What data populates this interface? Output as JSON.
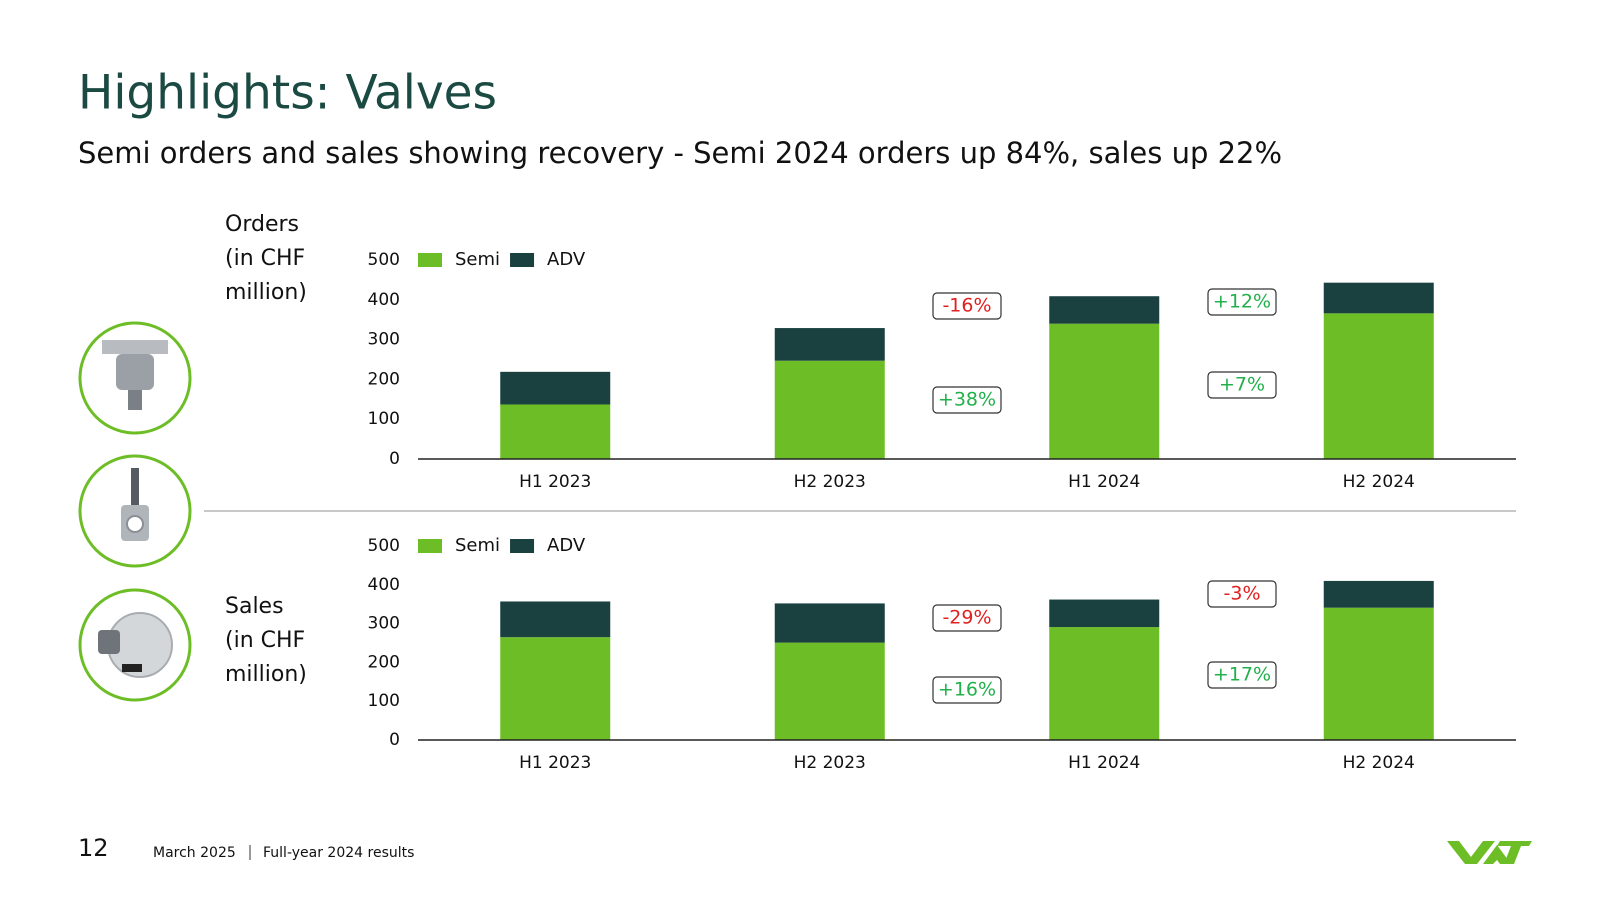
{
  "header": {
    "title": "Highlights: Valves",
    "subtitle": "Semi orders and sales showing recovery - Semi 2024 orders up 84%, sales up 22%"
  },
  "footer": {
    "page": "12",
    "date": "March 2025",
    "title": "Full-year 2024 results"
  },
  "chart_data": [
    {
      "type": "bar",
      "stacked": true,
      "label_lines": [
        "Orders",
        "(in CHF",
        "million)"
      ],
      "categories": [
        "H1 2023",
        "H2 2023",
        "H1 2024",
        "H2 2024"
      ],
      "series": [
        {
          "name": "Semi",
          "color": "#6dbe26",
          "values": [
            137,
            247,
            340,
            366
          ]
        },
        {
          "name": "ADV",
          "color": "#1a4040",
          "values": [
            82,
            82,
            69,
            77
          ]
        }
      ],
      "ylim": [
        0,
        500
      ],
      "yticks": [
        0,
        100,
        200,
        300,
        400,
        500
      ],
      "annotations": [
        {
          "text": "-16%",
          "color": "#e02020"
        },
        {
          "text": "+38%",
          "color": "#22b04b"
        },
        {
          "text": "+12%",
          "color": "#22b04b"
        },
        {
          "text": "+7%",
          "color": "#22b04b"
        }
      ]
    },
    {
      "type": "bar",
      "stacked": true,
      "label_lines": [
        "Sales",
        "(in CHF",
        "million)"
      ],
      "categories": [
        "H1 2023",
        "H2 2023",
        "H1 2024",
        "H2 2024"
      ],
      "series": [
        {
          "name": "Semi",
          "color": "#6dbe26",
          "values": [
            265,
            251,
            291,
            341
          ]
        },
        {
          "name": "ADV",
          "color": "#1a4040",
          "values": [
            92,
            101,
            71,
            69
          ]
        }
      ],
      "ylim": [
        0,
        500
      ],
      "yticks": [
        0,
        100,
        200,
        300,
        400,
        500
      ],
      "annotations": [
        {
          "text": "-29%",
          "color": "#e02020"
        },
        {
          "text": "+16%",
          "color": "#22b04b"
        },
        {
          "text": "-3%",
          "color": "#e02020"
        },
        {
          "text": "+17%",
          "color": "#22b04b"
        }
      ]
    }
  ]
}
